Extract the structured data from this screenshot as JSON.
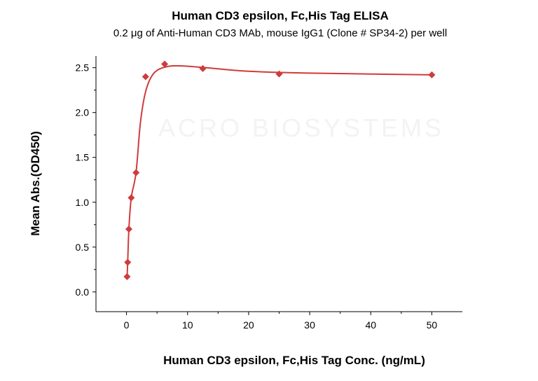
{
  "chart_data": {
    "type": "scatter",
    "title": "Human CD3 epsilon, Fc,His Tag ELISA",
    "subtitle": "0.2 μg of Anti-Human CD3 MAb, mouse IgG1 (Clone # SP34-2) per well",
    "xlabel": "Human CD3 epsilon, Fc,His Tag Conc. (ng/mL)",
    "ylabel": "Mean Abs.(OD450)",
    "xlim": [
      -5,
      55
    ],
    "ylim": [
      -0.22,
      2.63
    ],
    "xticks": [
      0,
      10,
      20,
      30,
      40,
      50
    ],
    "xtick_labels": [
      "0",
      "10",
      "20",
      "30",
      "40",
      "50"
    ],
    "yticks": [
      0,
      0.5,
      1,
      1.5,
      2,
      2.5
    ],
    "ytick_labels": [
      "0.0",
      "0.5",
      "1.0",
      "1.5",
      "2.0",
      "2.5"
    ],
    "grid": false,
    "series": [
      {
        "x": [
          0.098,
          0.195,
          0.39,
          0.78,
          1.56,
          3.125,
          6.25,
          12.5,
          25,
          50
        ],
        "y": [
          0.17,
          0.33,
          0.7,
          1.05,
          1.33,
          2.4,
          2.54,
          2.49,
          2.43,
          2.42
        ],
        "marker": "diamond",
        "fit_curve": true
      }
    ],
    "colors": {
      "series": "#d03b3b",
      "axis": "#000000"
    },
    "watermark": "ACRO BIOSYSTEMS"
  }
}
